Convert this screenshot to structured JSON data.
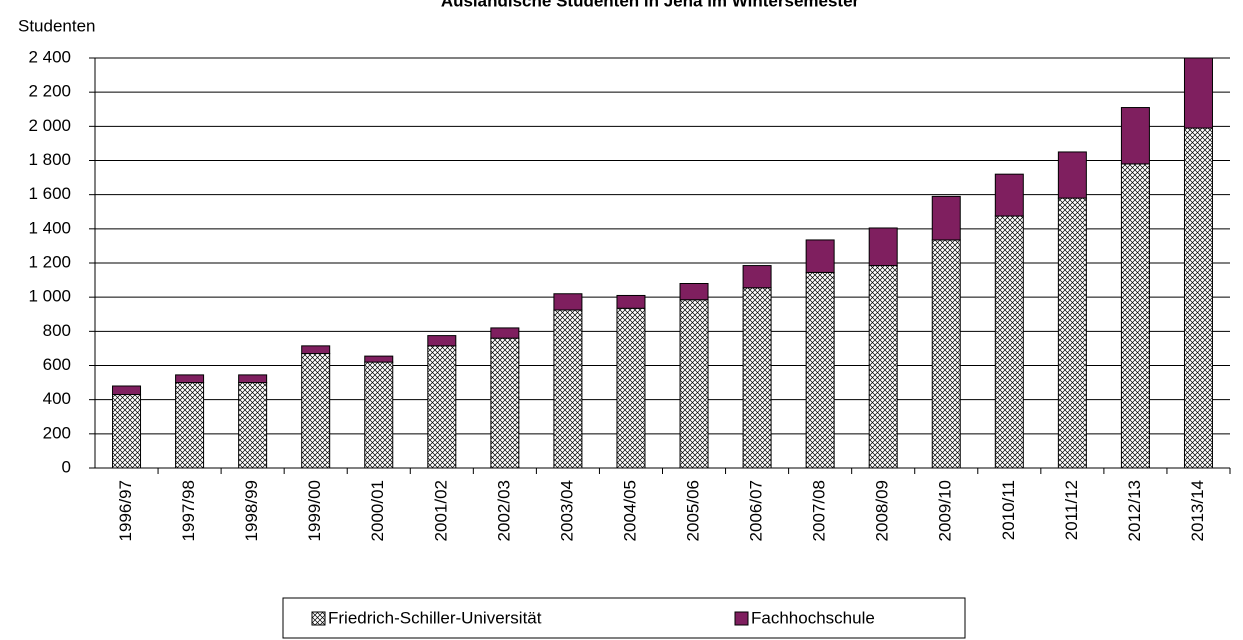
{
  "chart_data": {
    "type": "stacked_bar",
    "title": "Ausländische Studenten in Jena im Wintersemester",
    "y_label": "Studenten",
    "categories": [
      "1996/97",
      "1997/98",
      "1998/99",
      "1999/00",
      "2000/01",
      "2001/02",
      "2002/03",
      "2003/04",
      "2004/05",
      "2005/06",
      "2006/07",
      "2007/08",
      "2008/09",
      "2009/10",
      "2010/11",
      "2011/12",
      "2012/13",
      "2013/14"
    ],
    "series": [
      {
        "name": "Friedrich-Schiller-Universität",
        "color": "#000000",
        "values": [
          430,
          500,
          500,
          670,
          620,
          715,
          760,
          925,
          935,
          985,
          1055,
          1145,
          1185,
          1335,
          1475,
          1580,
          1780,
          1990
        ]
      },
      {
        "name": "Fachhochschule",
        "color": "#7f1f5f",
        "values": [
          50,
          45,
          45,
          45,
          35,
          60,
          60,
          95,
          75,
          95,
          130,
          190,
          220,
          255,
          245,
          270,
          330,
          410
        ]
      }
    ],
    "ylim": [
      0,
      2400
    ],
    "yticks": [
      0,
      200,
      400,
      600,
      800,
      {
        "value": 1000,
        "label": "1 000"
      },
      {
        "value": 1200,
        "label": "1 200"
      },
      {
        "value": 1400,
        "label": "1 400"
      },
      {
        "value": 1600,
        "label": "1 600"
      },
      {
        "value": 1800,
        "label": "1 800"
      },
      {
        "value": 2000,
        "label": "2 000"
      },
      {
        "value": 2200,
        "label": "2 200"
      },
      {
        "value": 2400,
        "label": "2 400"
      }
    ],
    "grid": true,
    "legend": "bottom"
  }
}
